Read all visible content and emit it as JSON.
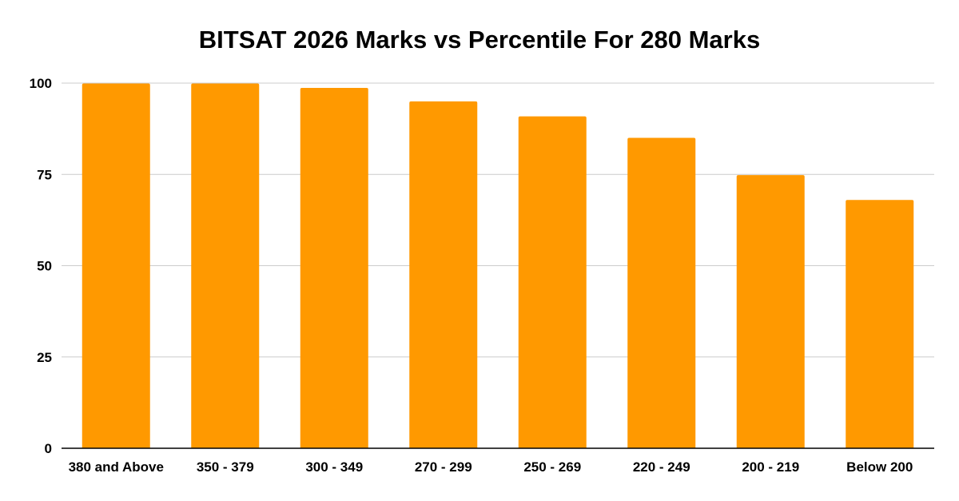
{
  "chart_data": {
    "type": "bar",
    "title": "BITSAT 2026 Marks vs Percentile For 280 Marks",
    "xlabel": "",
    "ylabel": "",
    "categories": [
      "380 and Above",
      "350 - 379",
      "300 - 349",
      "270 - 299",
      "250 - 269",
      "220 - 249",
      "200 - 219",
      "Below 200"
    ],
    "values": [
      99.9,
      99.9,
      98.7,
      95,
      90.9,
      85,
      74.8,
      68
    ],
    "ylim": [
      0,
      100
    ],
    "yticks": [
      "0",
      "25",
      "50",
      "75",
      "100"
    ],
    "grid": true,
    "colors": {
      "bar": "#ff9900",
      "grid": "#cccccc",
      "axis": "#000000"
    }
  }
}
